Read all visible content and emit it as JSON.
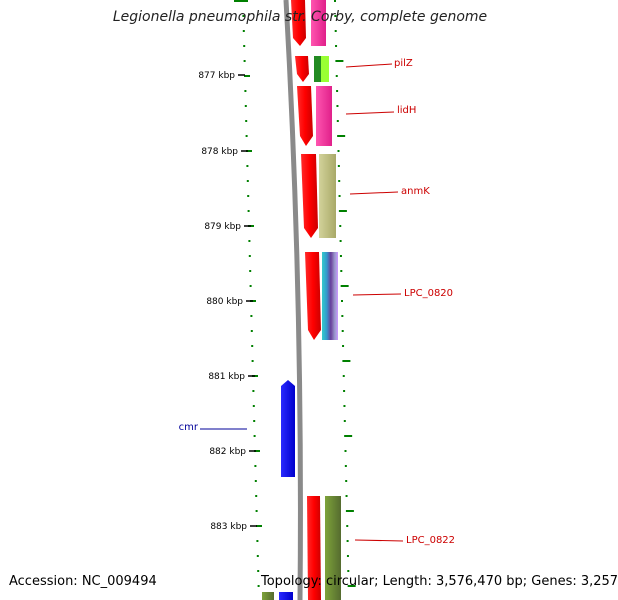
{
  "header": {
    "title": "Legionella pneumophila str. Corby, complete genome"
  },
  "footer": {
    "accession": "Accession: NC_009494",
    "topology": "Topology: circular; Length: 3,576,470 bp; Genes: 3,257"
  },
  "ticks": [
    "877 kbp",
    "878 kbp",
    "879 kbp",
    "880 kbp",
    "881 kbp",
    "882 kbp",
    "883 kbp"
  ],
  "gene_labels": [
    {
      "name": "pilZ",
      "strand": "forward"
    },
    {
      "name": "lidH",
      "strand": "forward"
    },
    {
      "name": "anmK",
      "strand": "forward"
    },
    {
      "name": "LPC_0820",
      "strand": "forward"
    },
    {
      "name": "cmr",
      "strand": "reverse"
    },
    {
      "name": "LPC_0822",
      "strand": "forward"
    }
  ],
  "colors": {
    "backbone": "#8a8a8a",
    "tick": "#000000",
    "gc_dots": "#008000",
    "cds": "#ff0000",
    "reverse_cds": "#0000ff",
    "forward_label": "#cc0000",
    "reverse_label": "#000099",
    "pink": "#ff3399",
    "khaki": "#bdbd7a",
    "olive": "#6b8e23",
    "lime": "#99ff33",
    "green": "#228b22"
  }
}
